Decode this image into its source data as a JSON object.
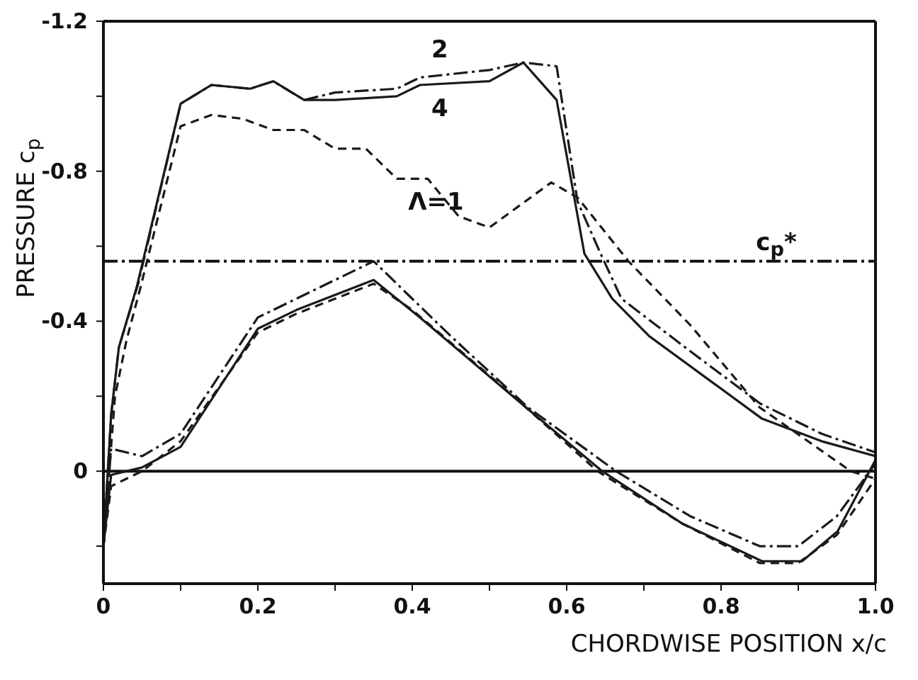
{
  "chart_data": {
    "type": "line",
    "xlabel": "CHORDWISE POSITION x/c",
    "ylabel": "PRESSURE c$_{p}$",
    "xlim": [
      0,
      1
    ],
    "ylim": [
      0.3,
      -1.2
    ],
    "xticks": [
      0,
      {
        "value": 0.1,
        "label": null
      },
      0.2,
      {
        "value": 0.3,
        "label": null
      },
      0.4,
      {
        "value": 0.5,
        "label": null
      },
      0.6,
      {
        "value": 0.7,
        "label": null
      },
      0.8,
      {
        "value": 0.9,
        "label": null
      },
      {
        "value": 1,
        "label": "1.0"
      }
    ],
    "yticks": [
      -1.2,
      {
        "value": -1.0,
        "label": null
      },
      -0.8,
      {
        "value": -0.6,
        "label": null
      },
      -0.4,
      {
        "value": -0.2,
        "label": null
      },
      0,
      {
        "value": 0.2,
        "label": null
      }
    ],
    "grid": false,
    "legend": false,
    "marker": "none",
    "ref_lines": [
      {
        "axis": "y",
        "value": 0,
        "label": null,
        "color": "#111111",
        "line_style": "solid"
      },
      {
        "axis": "y",
        "value": -0.56,
        "label": "c$_{p}$*",
        "color": "#111111",
        "line_style": "dashdot"
      }
    ],
    "series": [
      {
        "name": "2",
        "color": "#1a1a1a",
        "line_style": "dashdot",
        "x": [
          0,
          0.01,
          0.02,
          0.045,
          0.1,
          0.14,
          0.19,
          0.22,
          0.26,
          0.3,
          0.38,
          0.41,
          0.5,
          0.544,
          0.587,
          0.614,
          0.644,
          0.671,
          0.76,
          0.851,
          0.93,
          1.0
        ],
        "values": [
          0.2,
          -0.15,
          -0.33,
          -0.5,
          -0.98,
          -1.03,
          -1.02,
          -1.04,
          -0.99,
          -1.01,
          -1.02,
          -1.05,
          -1.07,
          -1.09,
          -1.08,
          -0.72,
          -0.58,
          -0.46,
          -0.32,
          -0.18,
          -0.1,
          -0.05
        ]
      },
      {
        "name": "4",
        "color": "#1a1a1a",
        "line_style": "solid",
        "x": [
          0,
          0.01,
          0.02,
          0.043,
          0.1,
          0.14,
          0.19,
          0.22,
          0.26,
          0.3,
          0.38,
          0.41,
          0.5,
          0.544,
          0.587,
          0.623,
          0.659,
          0.707,
          0.78,
          0.853,
          0.93,
          1.0
        ],
        "values": [
          0.2,
          -0.15,
          -0.33,
          -0.49,
          -0.98,
          -1.03,
          -1.02,
          -1.04,
          -0.99,
          -0.99,
          -1.0,
          -1.03,
          -1.04,
          -1.09,
          -0.99,
          -0.58,
          -0.46,
          -0.36,
          -0.25,
          -0.14,
          -0.08,
          -0.04
        ]
      },
      {
        "name": "Λ=1",
        "color": "#1a1a1a",
        "line_style": "dashed",
        "x": [
          0,
          0.015,
          0.03,
          0.048,
          0.1,
          0.14,
          0.18,
          0.22,
          0.26,
          0.3,
          0.34,
          0.38,
          0.42,
          0.46,
          0.5,
          0.58,
          0.614,
          0.68,
          0.76,
          0.85,
          0.968,
          1.0
        ],
        "values": [
          0.2,
          -0.2,
          -0.35,
          -0.49,
          -0.92,
          -0.95,
          -0.94,
          -0.91,
          -0.91,
          -0.86,
          -0.86,
          -0.78,
          -0.78,
          -0.68,
          -0.65,
          -0.77,
          -0.73,
          -0.56,
          -0.39,
          -0.17,
          0.0,
          0.02
        ]
      },
      {
        "color": "#1a1a1a",
        "line_style": "dashdot",
        "x": [
          0,
          0.01,
          0.05,
          0.1,
          0.2,
          0.35,
          0.45,
          0.55,
          0.664,
          0.76,
          0.85,
          0.9,
          0.95,
          1.0
        ],
        "values": [
          0.2,
          -0.06,
          -0.04,
          -0.1,
          -0.41,
          -0.56,
          -0.36,
          -0.17,
          0.0,
          0.12,
          0.2,
          0.2,
          0.12,
          -0.02
        ]
      },
      {
        "color": "#1a1a1a",
        "line_style": "solid",
        "x": [
          0,
          0.01,
          0.05,
          0.1,
          0.2,
          0.25,
          0.35,
          0.41,
          0.53,
          0.646,
          0.75,
          0.853,
          0.905,
          0.951,
          1.0
        ],
        "values": [
          0.2,
          0.01,
          -0.01,
          -0.065,
          -0.38,
          -0.43,
          -0.51,
          -0.41,
          -0.2,
          0.0,
          0.14,
          0.24,
          0.24,
          0.16,
          -0.03
        ]
      },
      {
        "color": "#1a1a1a",
        "line_style": "dashed",
        "x": [
          0,
          0.01,
          0.05,
          0.1,
          0.2,
          0.25,
          0.35,
          0.4,
          0.52,
          0.64,
          0.75,
          0.85,
          0.9,
          0.95,
          1.0
        ],
        "values": [
          0.2,
          0.04,
          0.0,
          -0.08,
          -0.37,
          -0.42,
          -0.5,
          -0.43,
          -0.22,
          0.0,
          0.14,
          0.245,
          0.245,
          0.17,
          0.02
        ]
      }
    ]
  }
}
